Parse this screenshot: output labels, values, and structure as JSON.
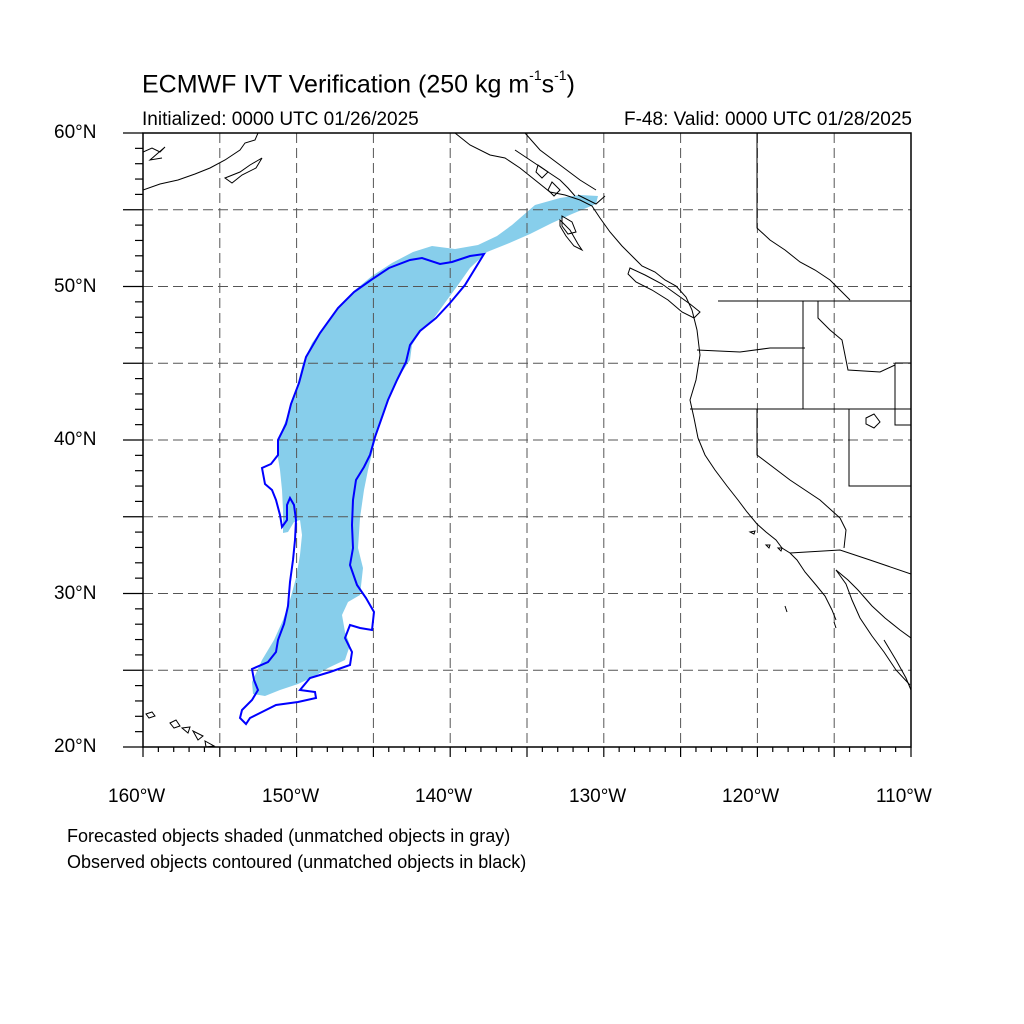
{
  "title": {
    "main": "ECMWF IVT Verification (250 kg m",
    "exp1": "-1",
    "mid": "s",
    "exp2": "-1",
    "close": ")"
  },
  "initialized": "Initialized: 0000 UTC 01/26/2025",
  "valid": "F-48: Valid: 0000 UTC 01/28/2025",
  "map": {
    "lon_range": [
      -160,
      -110
    ],
    "lat_range": [
      20,
      60
    ],
    "lat_labels": [
      "60°N",
      "50°N",
      "40°N",
      "30°N",
      "20°N"
    ],
    "lon_labels": [
      "160°W",
      "150°W",
      "140°W",
      "130°W",
      "120°W",
      "110°W"
    ],
    "grid_spacing_deg": 5,
    "grid_style": "dashed gray",
    "forecast_fill_color": "#87ceeb",
    "observed_contour_color": "#0000ff"
  },
  "legend": {
    "line1": "Forecasted objects shaded (unmatched objects in gray)",
    "line2": "Observed objects contoured (unmatched objects in black)"
  }
}
